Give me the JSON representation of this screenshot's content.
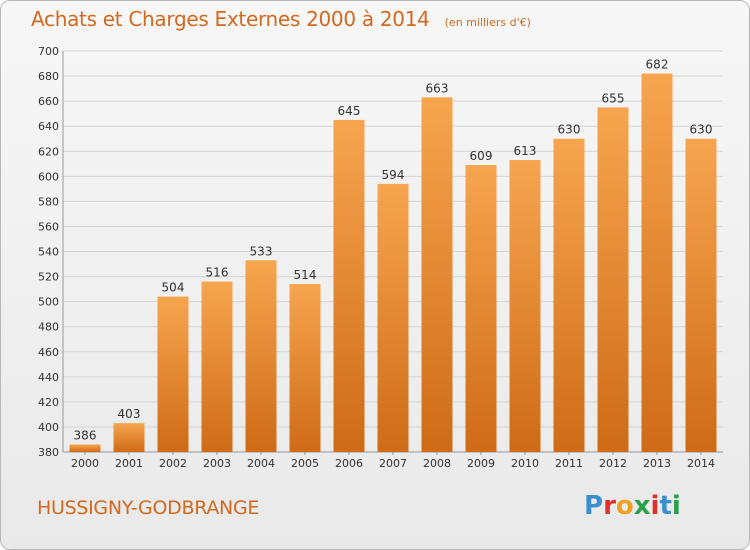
{
  "header": {
    "title": "Achats et Charges Externes 2000 à 2014",
    "subtitle": "(en milliers d'€)"
  },
  "footer": {
    "commune": "HUSSIGNY-GODBRANGE",
    "logo_letters": [
      "P",
      "r",
      "o",
      "x",
      "i",
      "t",
      "i"
    ],
    "logo_colors": [
      "#3a8fd0",
      "#e0302d",
      "#f0a020",
      "#2aa04a",
      "#e0302d",
      "#3a8fd0",
      "#2aa04a"
    ]
  },
  "colors": {
    "bar_top": "#f7a54f",
    "bar_bottom": "#cf6b17",
    "accent": "#d2691e",
    "grid": "#d4d4d4",
    "axis_text": "#333333"
  },
  "chart_data": {
    "type": "bar",
    "categories": [
      "2000",
      "2001",
      "2002",
      "2003",
      "2004",
      "2005",
      "2006",
      "2007",
      "2008",
      "2009",
      "2010",
      "2011",
      "2012",
      "2013",
      "2014"
    ],
    "values": [
      386,
      403,
      504,
      516,
      533,
      514,
      645,
      594,
      663,
      609,
      613,
      630,
      655,
      682,
      630
    ],
    "data_labels": [
      "386",
      "403",
      "504",
      "516",
      "533",
      "514",
      "645",
      "594",
      "663",
      "609",
      "613",
      "630",
      "655",
      "682",
      "630"
    ],
    "ylim": [
      380,
      700
    ],
    "yticks": [
      380,
      400,
      420,
      440,
      460,
      480,
      500,
      520,
      540,
      560,
      580,
      600,
      620,
      640,
      660,
      680,
      700
    ],
    "grid": true,
    "xlabel": "",
    "ylabel": ""
  }
}
